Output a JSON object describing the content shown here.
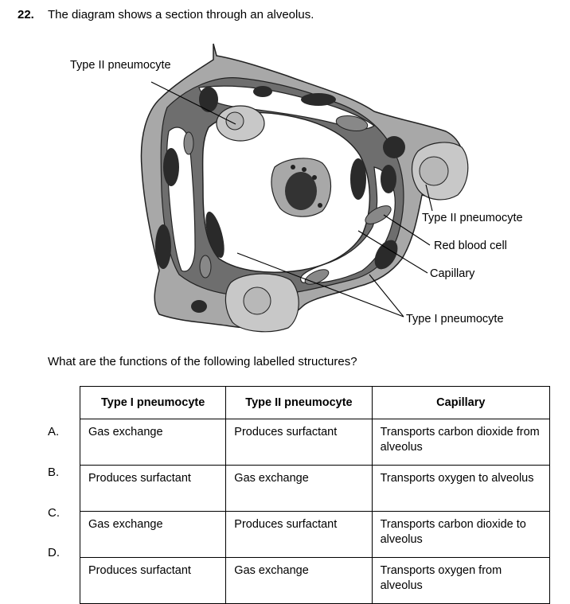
{
  "question": {
    "number": "22.",
    "text": "The diagram shows a section through an alveolus.",
    "prompt": "What are the functions of the following labelled structures?"
  },
  "diagram": {
    "labels": {
      "type2_top": "Type II pneumocyte",
      "type2_right": "Type II pneumocyte",
      "red_blood_cell": "Red blood cell",
      "capillary": "Capillary",
      "type1": "Type I pneumocyte"
    }
  },
  "table": {
    "headers": [
      "Type I pneumocyte",
      "Type II pneumocyte",
      "Capillary"
    ],
    "rows": [
      {
        "letter": "A.",
        "cells": [
          "Gas exchange",
          "Produces surfactant",
          "Transports carbon dioxide from alveolus"
        ]
      },
      {
        "letter": "B.",
        "cells": [
          "Produces surfactant",
          "Gas exchange",
          "Transports oxygen to alveolus"
        ]
      },
      {
        "letter": "C.",
        "cells": [
          "Gas exchange",
          "Produces surfactant",
          "Transports carbon dioxide to alveolus"
        ]
      },
      {
        "letter": "D.",
        "cells": [
          "Produces surfactant",
          "Gas exchange",
          "Transports oxygen from alveolus"
        ]
      }
    ]
  }
}
